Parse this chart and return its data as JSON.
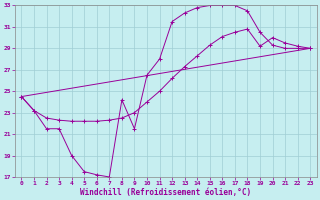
{
  "xlabel": "Windchill (Refroidissement éolien,°C)",
  "xlim": [
    -0.5,
    23.5
  ],
  "ylim": [
    17,
    33
  ],
  "yticks": [
    17,
    19,
    21,
    23,
    25,
    27,
    29,
    31,
    33
  ],
  "xticks": [
    0,
    1,
    2,
    3,
    4,
    5,
    6,
    7,
    8,
    9,
    10,
    11,
    12,
    13,
    14,
    15,
    16,
    17,
    18,
    19,
    20,
    21,
    22,
    23
  ],
  "bg_color": "#c6eef0",
  "grid_color": "#a0cdd4",
  "line_color": "#990099",
  "line1_x": [
    0,
    1,
    2,
    3,
    4,
    5,
    6,
    7,
    8,
    9,
    10,
    11,
    12,
    13,
    14,
    15,
    16,
    17,
    18,
    19,
    20,
    21,
    22,
    23
  ],
  "line1_y": [
    24.5,
    23.2,
    21.5,
    21.5,
    19.0,
    17.5,
    17.2,
    17.0,
    24.2,
    21.5,
    26.5,
    28.0,
    31.5,
    32.3,
    32.8,
    33.0,
    33.0,
    33.0,
    32.5,
    30.5,
    29.3,
    29.0,
    29.0,
    29.0
  ],
  "line2_x": [
    0,
    1,
    2,
    3,
    4,
    5,
    6,
    7,
    8,
    9,
    10,
    11,
    12,
    13,
    14,
    15,
    16,
    17,
    18,
    19,
    20,
    21,
    22,
    23
  ],
  "line2_y": [
    24.5,
    23.2,
    22.5,
    22.3,
    22.2,
    22.2,
    22.2,
    22.3,
    22.5,
    23.0,
    24.0,
    25.0,
    26.2,
    27.3,
    28.3,
    29.3,
    30.1,
    30.5,
    30.8,
    29.2,
    30.0,
    29.5,
    29.2,
    29.0
  ],
  "line3_x": [
    0,
    23
  ],
  "line3_y": [
    24.5,
    29.0
  ]
}
